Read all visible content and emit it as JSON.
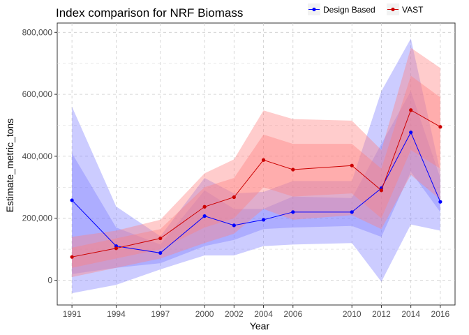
{
  "chart_data": {
    "type": "line",
    "title": "Index comparison for NRF Biomass",
    "xlabel": "Year",
    "ylabel": "Estimate_metric_tons",
    "x": [
      1991,
      1994,
      1997,
      2000,
      2002,
      2004,
      2006,
      2010,
      2012,
      2014,
      2016
    ],
    "x_tick_labels": [
      "1991",
      "1994",
      "1997",
      "2000",
      "2002",
      "2004",
      "2006",
      "2010",
      "2012",
      "2014",
      "2016"
    ],
    "y_ticks": [
      0,
      200000,
      400000,
      600000,
      800000
    ],
    "y_tick_labels": [
      "0",
      "200,000",
      "400,000",
      "600,000",
      "800,000"
    ],
    "ylim": [
      -80000,
      830000
    ],
    "grid": true,
    "legend_position": "top-right",
    "series": [
      {
        "name": "Design Based",
        "color": "#0000ff",
        "band_color": "#8080ff",
        "values": [
          258000,
          110000,
          88000,
          207000,
          177000,
          195000,
          220000,
          220000,
          297000,
          477000,
          253000
        ],
        "inner_lower": [
          20000,
          40000,
          55000,
          110000,
          130000,
          165000,
          170000,
          175000,
          140000,
          350000,
          220000
        ],
        "inner_upper": [
          410000,
          170000,
          115000,
          290000,
          230000,
          230000,
          270000,
          265000,
          440000,
          610000,
          330000
        ],
        "outer_lower": [
          -42000,
          -15000,
          35000,
          80000,
          80000,
          110000,
          115000,
          120000,
          -5000,
          180000,
          160000
        ],
        "outer_upper": [
          560000,
          238000,
          142000,
          330000,
          280000,
          285000,
          320000,
          320000,
          610000,
          780000,
          350000
        ]
      },
      {
        "name": "VAST",
        "color": "#cc0000",
        "band_color": "#ff8080",
        "values": [
          75000,
          103000,
          135000,
          237000,
          268000,
          388000,
          357000,
          370000,
          290000,
          549000,
          495000
        ],
        "inner_lower": [
          40000,
          70000,
          100000,
          170000,
          200000,
          300000,
          270000,
          280000,
          200000,
          420000,
          360000
        ],
        "inner_upper": [
          105000,
          135000,
          165000,
          300000,
          330000,
          470000,
          440000,
          440000,
          360000,
          660000,
          590000
        ],
        "outer_lower": [
          10000,
          40000,
          70000,
          120000,
          150000,
          230000,
          195000,
          210000,
          165000,
          340000,
          260000
        ],
        "outer_upper": [
          140000,
          160000,
          195000,
          345000,
          390000,
          548000,
          520000,
          515000,
          420000,
          750000,
          685000
        ]
      }
    ]
  }
}
